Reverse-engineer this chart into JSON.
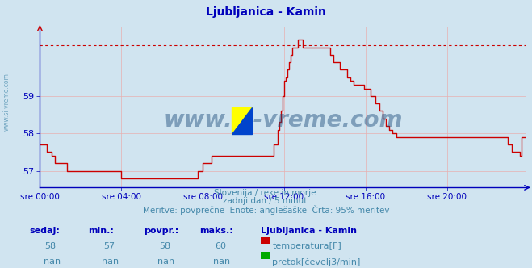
{
  "title": "Ljubljanica - Kamin",
  "bg_color": "#d0e4f0",
  "plot_bg_color": "#d0e4f0",
  "line_color": "#cc0000",
  "grid_color": "#e8b0b0",
  "axis_color": "#0000bb",
  "text_color": "#4488aa",
  "ylabel_ticks": [
    57,
    58,
    59
  ],
  "ymin": 56.55,
  "ymax": 60.85,
  "dotted_line_y": 60.35,
  "xtick_labels": [
    "sre 00:00",
    "sre 04:00",
    "sre 08:00",
    "sre 12:00",
    "sre 16:00",
    "sre 20:00"
  ],
  "xtick_positions": [
    0,
    48,
    96,
    144,
    192,
    240
  ],
  "subtitle1": "Slovenija / reke in morje.",
  "subtitle2": "zadnji dan / 5 minut.",
  "subtitle3": "Meritve: povprečne  Enote: anglešaške  Črta: 95% meritev",
  "footer_label1": "sedaj:",
  "footer_label2": "min.:",
  "footer_label3": "povpr.:",
  "footer_label4": "maks.:",
  "footer_val_sedaj": "58",
  "footer_val_min": "57",
  "footer_val_povpr": "58",
  "footer_val_maks": "60",
  "footer_series_name": "Ljubljanica - Kamin",
  "footer_series1_label": "temperatura[F]",
  "footer_series2_label": "pretok[čevelj3/min]",
  "footer_nan1": "-nan",
  "footer_nan2": "-nan",
  "footer_nan3": "-nan",
  "footer_nan4": "-nan",
  "watermark": "www.si-vreme.com",
  "watermark_color": "#1a4a7a",
  "temp_data": [
    57.7,
    57.7,
    57.7,
    57.7,
    57.5,
    57.5,
    57.5,
    57.4,
    57.4,
    57.2,
    57.2,
    57.2,
    57.2,
    57.2,
    57.2,
    57.2,
    57.0,
    57.0,
    57.0,
    57.0,
    57.0,
    57.0,
    57.0,
    57.0,
    57.0,
    57.0,
    57.0,
    57.0,
    57.0,
    57.0,
    57.0,
    57.0,
    57.0,
    57.0,
    57.0,
    57.0,
    57.0,
    57.0,
    57.0,
    57.0,
    57.0,
    57.0,
    57.0,
    57.0,
    57.0,
    57.0,
    57.0,
    57.0,
    56.8,
    56.8,
    56.8,
    56.8,
    56.8,
    56.8,
    56.8,
    56.8,
    56.8,
    56.8,
    56.8,
    56.8,
    56.8,
    56.8,
    56.8,
    56.8,
    56.8,
    56.8,
    56.8,
    56.8,
    56.8,
    56.8,
    56.8,
    56.8,
    56.8,
    56.8,
    56.8,
    56.8,
    56.8,
    56.8,
    56.8,
    56.8,
    56.8,
    56.8,
    56.8,
    56.8,
    56.8,
    56.8,
    56.8,
    56.8,
    56.8,
    56.8,
    56.8,
    56.8,
    56.8,
    57.0,
    57.0,
    57.0,
    57.2,
    57.2,
    57.2,
    57.2,
    57.2,
    57.4,
    57.4,
    57.4,
    57.4,
    57.4,
    57.4,
    57.4,
    57.4,
    57.4,
    57.4,
    57.4,
    57.4,
    57.4,
    57.4,
    57.4,
    57.4,
    57.4,
    57.4,
    57.4,
    57.4,
    57.4,
    57.4,
    57.4,
    57.4,
    57.4,
    57.4,
    57.4,
    57.4,
    57.4,
    57.4,
    57.4,
    57.4,
    57.4,
    57.4,
    57.4,
    57.4,
    57.4,
    57.7,
    57.7,
    58.1,
    58.3,
    58.6,
    59.0,
    59.4,
    59.5,
    59.7,
    59.9,
    60.1,
    60.3,
    60.3,
    60.3,
    60.5,
    60.5,
    60.5,
    60.3,
    60.3,
    60.3,
    60.3,
    60.3,
    60.3,
    60.3,
    60.3,
    60.3,
    60.3,
    60.3,
    60.3,
    60.3,
    60.3,
    60.3,
    60.3,
    60.1,
    60.1,
    59.9,
    59.9,
    59.9,
    59.9,
    59.7,
    59.7,
    59.7,
    59.7,
    59.5,
    59.5,
    59.4,
    59.4,
    59.3,
    59.3,
    59.3,
    59.3,
    59.3,
    59.3,
    59.2,
    59.2,
    59.2,
    59.2,
    59.0,
    59.0,
    59.0,
    58.8,
    58.8,
    58.6,
    58.6,
    58.4,
    58.4,
    58.2,
    58.2,
    58.1,
    58.1,
    58.0,
    58.0,
    57.9,
    57.9,
    57.9,
    57.9,
    57.9,
    57.9,
    57.9,
    57.9,
    57.9,
    57.9,
    57.9,
    57.9,
    57.9,
    57.9,
    57.9,
    57.9,
    57.9,
    57.9,
    57.9,
    57.9,
    57.9,
    57.9,
    57.9,
    57.9,
    57.9,
    57.9,
    57.9,
    57.9,
    57.9,
    57.9,
    57.9,
    57.9,
    57.9,
    57.9,
    57.9,
    57.9,
    57.9,
    57.9,
    57.9,
    57.9,
    57.9,
    57.9,
    57.9,
    57.9,
    57.9,
    57.9,
    57.9,
    57.9,
    57.9,
    57.9,
    57.9,
    57.9,
    57.9,
    57.9,
    57.9,
    57.9,
    57.9,
    57.9,
    57.9,
    57.9,
    57.9,
    57.9,
    57.9,
    57.9,
    57.9,
    57.9,
    57.7,
    57.7,
    57.5,
    57.5,
    57.5,
    57.5,
    57.5,
    57.4,
    57.9,
    57.9,
    57.9,
    57.9
  ]
}
